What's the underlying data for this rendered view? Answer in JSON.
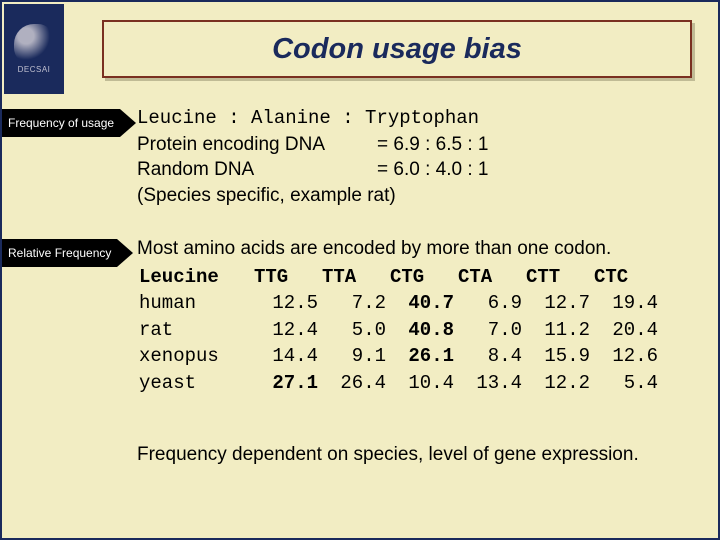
{
  "logo": {
    "acronym": "DECSAI"
  },
  "title": "Codon usage bias",
  "arrows": {
    "freq_usage": "Frequency of usage",
    "rel_freq": "Relative Frequency"
  },
  "block1": {
    "line1": "Leucine : Alanine : Tryptophan",
    "protein_label": "Protein encoding DNA",
    "protein_ratio": "= 6.9 :  6.5 : 1",
    "random_label": "Random DNA",
    "random_ratio": "= 6.0 :  4.0 : 1",
    "note": "(Species specific, example rat)"
  },
  "block2": {
    "intro": "Most amino acids are encoded by more than one codon.",
    "header_label": "Leucine",
    "codons": [
      "TTG",
      "TTA",
      "CTG",
      "CTA",
      "CTT",
      "CTC"
    ],
    "rows": [
      {
        "species": "human",
        "vals": [
          "12.5",
          " 7.2",
          "40.7",
          " 6.9",
          "12.7",
          "19.4"
        ],
        "bold_idx": 2
      },
      {
        "species": "rat",
        "vals": [
          "12.4",
          " 5.0",
          "40.8",
          " 7.0",
          "11.2",
          "20.4"
        ],
        "bold_idx": 2
      },
      {
        "species": "xenopus",
        "vals": [
          "14.4",
          " 9.1",
          "26.1",
          " 8.4",
          "15.9",
          "12.6"
        ],
        "bold_idx": 2
      },
      {
        "species": "yeast",
        "vals": [
          "27.1",
          "26.4",
          "10.4",
          "13.4",
          "12.2",
          " 5.4"
        ],
        "bold_idx": 0
      }
    ]
  },
  "footer": "Frequency dependent on species, level of gene expression."
}
